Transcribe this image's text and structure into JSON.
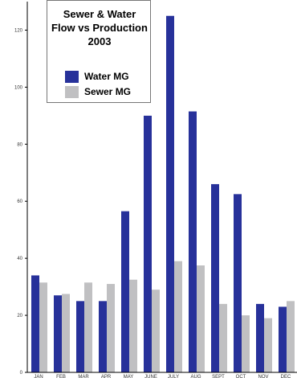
{
  "chart_data": {
    "type": "bar",
    "title_lines": [
      "Sewer & Water",
      "Flow vs Production",
      "2003"
    ],
    "xlabel": "",
    "ylabel": "",
    "ylim": [
      0,
      130
    ],
    "yticks": [
      0,
      20,
      40,
      60,
      80,
      100,
      120
    ],
    "grid": false,
    "legend_position": "top-left",
    "categories": [
      "JAN",
      "FEB",
      "MAR",
      "APR",
      "MAY",
      "JUNE",
      "JULY",
      "AUG",
      "SEPT",
      "OCT",
      "NOV",
      "DEC"
    ],
    "series": [
      {
        "name": "Water MG",
        "color": "#27319a",
        "values": [
          34,
          27,
          25,
          25,
          56.5,
          90,
          125,
          91.5,
          66,
          62.5,
          24,
          23
        ]
      },
      {
        "name": "Sewer MG",
        "color": "#c0c0c2",
        "values": [
          31.5,
          27.5,
          31.5,
          31,
          32.5,
          29,
          39,
          37.5,
          24,
          20,
          19,
          25
        ]
      }
    ]
  }
}
